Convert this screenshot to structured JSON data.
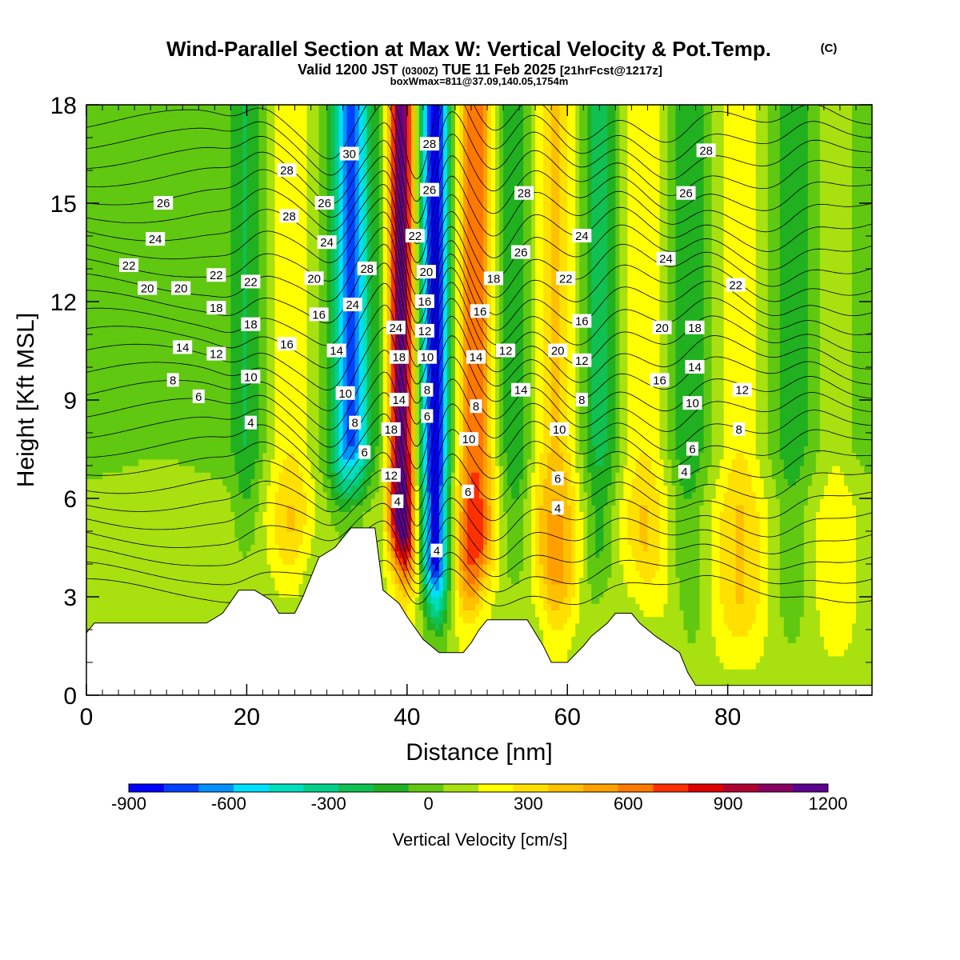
{
  "title": {
    "main": "Wind-Parallel Section at Max W: Vertical Velocity & Pot.Temp.",
    "main_mark": "(C)",
    "valid": "Valid 1200 JST",
    "valid_z": "(0300Z)",
    "valid_date": "TUE 11 Feb 2025",
    "forecast": "[21hrFcst@1217z]",
    "box": "boxWmax=811@37.09,140.05,1754m"
  },
  "chart_data": {
    "type": "heatmap",
    "xlabel": "Distance [nm]",
    "ylabel": "Height [Kft MSL]",
    "xlim": [
      0,
      98
    ],
    "ylim": [
      0,
      18
    ],
    "xticks": [
      0,
      20,
      40,
      60,
      80
    ],
    "yticks": [
      0,
      3,
      6,
      9,
      12,
      15,
      18
    ],
    "colorbar": {
      "label": "Vertical Velocity [cm/s]",
      "min": -900,
      "max": 1200,
      "step": 100,
      "tick_values": [
        -900,
        -600,
        -300,
        0,
        300,
        600,
        900,
        1200
      ],
      "tick_labels": [
        "-900",
        "-600",
        "-300",
        "0",
        "300",
        "600",
        "900",
        "1200"
      ],
      "colors": [
        "#0000ff",
        "#0040ff",
        "#0090ff",
        "#00e0ff",
        "#00e0c0",
        "#00d08a",
        "#10c050",
        "#20b020",
        "#60c810",
        "#a8e010",
        "#ffff00",
        "#ffe000",
        "#ffc000",
        "#ffa000",
        "#ff7800",
        "#ff3000",
        "#e00000",
        "#b00030",
        "#880060",
        "#5c0090"
      ]
    },
    "terrain": [
      [
        0,
        1.9
      ],
      [
        1,
        2.2
      ],
      [
        15,
        2.2
      ],
      [
        17,
        2.5
      ],
      [
        19,
        3.2
      ],
      [
        21,
        3.2
      ],
      [
        23,
        2.9
      ],
      [
        24,
        2.5
      ],
      [
        26,
        2.5
      ],
      [
        27,
        3.0
      ],
      [
        29,
        4.2
      ],
      [
        31,
        4.5
      ],
      [
        33,
        5.1
      ],
      [
        36,
        5.1
      ],
      [
        37,
        3.2
      ],
      [
        39,
        2.8
      ],
      [
        40,
        2.4
      ],
      [
        42,
        1.7
      ],
      [
        43,
        1.5
      ],
      [
        44,
        1.3
      ],
      [
        47,
        1.3
      ],
      [
        48,
        1.6
      ],
      [
        49,
        2.0
      ],
      [
        50,
        2.3
      ],
      [
        55,
        2.3
      ],
      [
        57,
        1.5
      ],
      [
        58,
        1.0
      ],
      [
        60,
        1.0
      ],
      [
        62,
        1.5
      ],
      [
        63,
        1.8
      ],
      [
        65,
        2.2
      ],
      [
        66,
        2.5
      ],
      [
        68,
        2.5
      ],
      [
        69,
        2.2
      ],
      [
        71,
        1.8
      ],
      [
        74,
        1.3
      ],
      [
        75,
        0.7
      ],
      [
        76,
        0.3
      ],
      [
        98,
        0.3
      ]
    ],
    "vertical_velocity_bands": [
      {
        "x": 9,
        "w": 5,
        "value": 40,
        "top": 17
      },
      {
        "x": 20,
        "w": 1.8,
        "value": -150,
        "top": 18
      },
      {
        "x": 25.5,
        "w": 3,
        "value": 250,
        "top": 18
      },
      {
        "x": 33,
        "w": 2.2,
        "value": -650,
        "top": 18
      },
      {
        "x": 39.3,
        "w": 1.6,
        "value": 1100,
        "top": 18
      },
      {
        "x": 43.5,
        "w": 1.7,
        "value": -900,
        "top": 18
      },
      {
        "x": 48.5,
        "w": 2.4,
        "value": 620,
        "top": 18
      },
      {
        "x": 53.5,
        "w": 2,
        "value": -170,
        "top": 18
      },
      {
        "x": 58.5,
        "w": 3,
        "value": 370,
        "top": 18
      },
      {
        "x": 64,
        "w": 2.2,
        "value": -200,
        "top": 18
      },
      {
        "x": 69.5,
        "w": 3,
        "value": 250,
        "top": 18
      },
      {
        "x": 75,
        "w": 2,
        "value": -150,
        "top": 18
      },
      {
        "x": 81.5,
        "w": 3,
        "value": 250,
        "top": 18
      },
      {
        "x": 88,
        "w": 2,
        "value": -120,
        "top": 18
      },
      {
        "x": 93.5,
        "w": 2.5,
        "value": 120,
        "top": 18
      }
    ],
    "low_level_background": {
      "value": 60,
      "top_height": 6.6
    },
    "upper_background": {
      "value": -60
    },
    "isentropes": {
      "units": "C",
      "min": 4,
      "max": 30,
      "step": 1
    },
    "contour_labels": [
      {
        "text": "26",
        "x": 9.6,
        "y": 15.0
      },
      {
        "text": "24",
        "x": 8.6,
        "y": 13.9
      },
      {
        "text": "22",
        "x": 5.3,
        "y": 13.1
      },
      {
        "text": "20",
        "x": 7.6,
        "y": 12.4
      },
      {
        "text": "20",
        "x": 11.8,
        "y": 12.4
      },
      {
        "text": "22",
        "x": 16.2,
        "y": 12.8
      },
      {
        "text": "18",
        "x": 16.2,
        "y": 11.8
      },
      {
        "text": "14",
        "x": 12.0,
        "y": 10.6
      },
      {
        "text": "12",
        "x": 16.2,
        "y": 10.4
      },
      {
        "text": "8",
        "x": 10.8,
        "y": 9.6
      },
      {
        "text": "6",
        "x": 14.0,
        "y": 9.1
      },
      {
        "text": "22",
        "x": 20.5,
        "y": 12.6
      },
      {
        "text": "18",
        "x": 20.5,
        "y": 11.3
      },
      {
        "text": "10",
        "x": 20.5,
        "y": 9.7
      },
      {
        "text": "4",
        "x": 20.5,
        "y": 8.3
      },
      {
        "text": "28",
        "x": 25.0,
        "y": 16.0
      },
      {
        "text": "28",
        "x": 25.3,
        "y": 14.6
      },
      {
        "text": "16",
        "x": 25.0,
        "y": 10.7
      },
      {
        "text": "26",
        "x": 29.7,
        "y": 15.0
      },
      {
        "text": "24",
        "x": 30.0,
        "y": 13.8
      },
      {
        "text": "20",
        "x": 28.4,
        "y": 12.7
      },
      {
        "text": "16",
        "x": 29.0,
        "y": 11.6
      },
      {
        "text": "14",
        "x": 31.2,
        "y": 10.5
      },
      {
        "text": "10",
        "x": 32.3,
        "y": 9.2
      },
      {
        "text": "8",
        "x": 33.5,
        "y": 8.3
      },
      {
        "text": "6",
        "x": 34.7,
        "y": 7.4
      },
      {
        "text": "30",
        "x": 32.8,
        "y": 16.5
      },
      {
        "text": "28",
        "x": 35.0,
        "y": 13.0
      },
      {
        "text": "24",
        "x": 33.2,
        "y": 11.9
      },
      {
        "text": "24",
        "x": 38.6,
        "y": 11.2
      },
      {
        "text": "18",
        "x": 39.0,
        "y": 10.3
      },
      {
        "text": "14",
        "x": 39.0,
        "y": 9.0
      },
      {
        "text": "18",
        "x": 38.0,
        "y": 8.1
      },
      {
        "text": "12",
        "x": 38.0,
        "y": 6.7
      },
      {
        "text": "4",
        "x": 38.8,
        "y": 5.9
      },
      {
        "text": "28",
        "x": 42.8,
        "y": 16.8
      },
      {
        "text": "26",
        "x": 42.8,
        "y": 15.4
      },
      {
        "text": "22",
        "x": 41.0,
        "y": 14.0
      },
      {
        "text": "20",
        "x": 42.4,
        "y": 12.9
      },
      {
        "text": "16",
        "x": 42.2,
        "y": 12.0
      },
      {
        "text": "12",
        "x": 42.2,
        "y": 11.1
      },
      {
        "text": "10",
        "x": 42.5,
        "y": 10.3
      },
      {
        "text": "8",
        "x": 42.5,
        "y": 9.3
      },
      {
        "text": "6",
        "x": 42.5,
        "y": 8.5
      },
      {
        "text": "4",
        "x": 43.7,
        "y": 4.4
      },
      {
        "text": "16",
        "x": 49.1,
        "y": 11.7
      },
      {
        "text": "14",
        "x": 48.6,
        "y": 10.3
      },
      {
        "text": "8",
        "x": 48.6,
        "y": 8.8
      },
      {
        "text": "10",
        "x": 47.7,
        "y": 7.8
      },
      {
        "text": "6",
        "x": 47.6,
        "y": 6.2
      },
      {
        "text": "28",
        "x": 54.6,
        "y": 15.3
      },
      {
        "text": "26",
        "x": 54.2,
        "y": 13.5
      },
      {
        "text": "18",
        "x": 50.8,
        "y": 12.7
      },
      {
        "text": "12",
        "x": 52.3,
        "y": 10.5
      },
      {
        "text": "14",
        "x": 54.2,
        "y": 9.3
      },
      {
        "text": "24",
        "x": 61.8,
        "y": 14.0
      },
      {
        "text": "22",
        "x": 59.8,
        "y": 12.7
      },
      {
        "text": "16",
        "x": 61.8,
        "y": 11.4
      },
      {
        "text": "20",
        "x": 58.8,
        "y": 10.5
      },
      {
        "text": "12",
        "x": 61.8,
        "y": 10.2
      },
      {
        "text": "8",
        "x": 61.8,
        "y": 9.0
      },
      {
        "text": "10",
        "x": 59.0,
        "y": 8.1
      },
      {
        "text": "6",
        "x": 58.8,
        "y": 6.6
      },
      {
        "text": "4",
        "x": 58.8,
        "y": 5.7
      },
      {
        "text": "24",
        "x": 72.3,
        "y": 13.3
      },
      {
        "text": "20",
        "x": 71.8,
        "y": 11.2
      },
      {
        "text": "16",
        "x": 71.5,
        "y": 9.6
      },
      {
        "text": "28",
        "x": 77.3,
        "y": 16.6
      },
      {
        "text": "26",
        "x": 74.8,
        "y": 15.3
      },
      {
        "text": "18",
        "x": 75.9,
        "y": 11.2
      },
      {
        "text": "14",
        "x": 75.9,
        "y": 10.0
      },
      {
        "text": "10",
        "x": 75.6,
        "y": 8.9
      },
      {
        "text": "6",
        "x": 75.6,
        "y": 7.5
      },
      {
        "text": "4",
        "x": 74.6,
        "y": 6.8
      },
      {
        "text": "22",
        "x": 81.0,
        "y": 12.5
      },
      {
        "text": "12",
        "x": 81.8,
        "y": 9.3
      },
      {
        "text": "8",
        "x": 81.4,
        "y": 8.1
      }
    ]
  }
}
